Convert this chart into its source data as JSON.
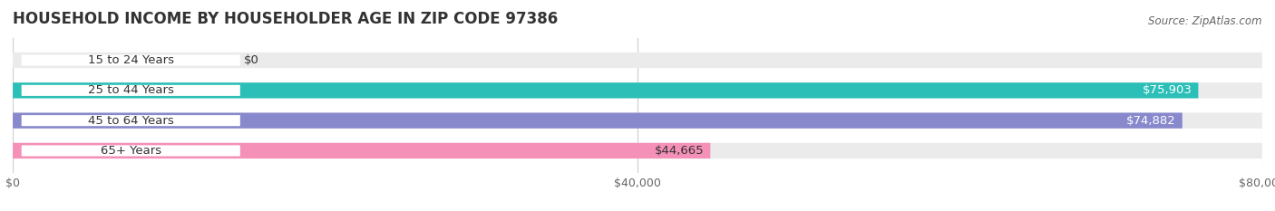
{
  "title": "HOUSEHOLD INCOME BY HOUSEHOLDER AGE IN ZIP CODE 97386",
  "source": "Source: ZipAtlas.com",
  "categories": [
    "15 to 24 Years",
    "25 to 44 Years",
    "45 to 64 Years",
    "65+ Years"
  ],
  "values": [
    0,
    75903,
    74882,
    44665
  ],
  "bar_colors": [
    "#c8a8d8",
    "#2bbfb8",
    "#8888cc",
    "#f590b8"
  ],
  "value_labels": [
    "$0",
    "$75,903",
    "$74,882",
    "$44,665"
  ],
  "value_label_colors": [
    "#333333",
    "#ffffff",
    "#ffffff",
    "#333333"
  ],
  "xlabel_ticks": [
    0,
    40000,
    80000
  ],
  "xlabel_labels": [
    "$0",
    "$40,000",
    "$80,000"
  ],
  "xlim": [
    0,
    80000
  ],
  "title_fontsize": 12,
  "source_fontsize": 8.5,
  "label_fontsize": 9.5,
  "tick_fontsize": 9,
  "background_color": "#ffffff",
  "bar_bg_color": "#ebebeb",
  "bar_height": 0.52,
  "bar_gap": 0.48
}
